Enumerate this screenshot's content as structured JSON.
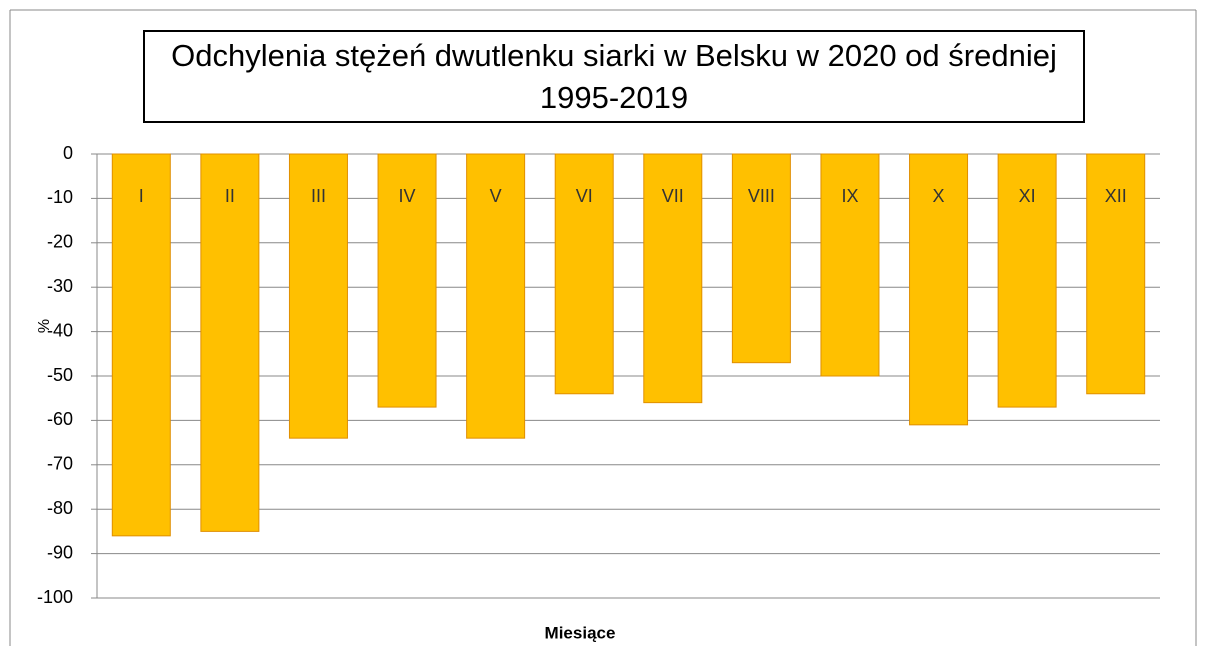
{
  "chart_data": {
    "type": "bar",
    "title": "Odchylenia stężeń dwutlenku siarki w Belsku w 2020 od średniej 1995-2019",
    "x_label": "Miesiące",
    "y_label": "%",
    "categories": [
      "I",
      "II",
      "III",
      "IV",
      "V",
      "VI",
      "VII",
      "VIII",
      "IX",
      "X",
      "XI",
      "XII"
    ],
    "values": [
      -86,
      -85,
      -64,
      -57,
      -64,
      -54,
      -56,
      -47,
      -50,
      -61,
      -57,
      -54
    ],
    "color": "#FFC000",
    "edge_color": "#E08F00",
    "ylim": [
      -100,
      0
    ],
    "yticks": [
      0,
      -10,
      -20,
      -30,
      -40,
      -50,
      -60,
      -70,
      -80,
      -90,
      -100
    ],
    "grid": true
  }
}
